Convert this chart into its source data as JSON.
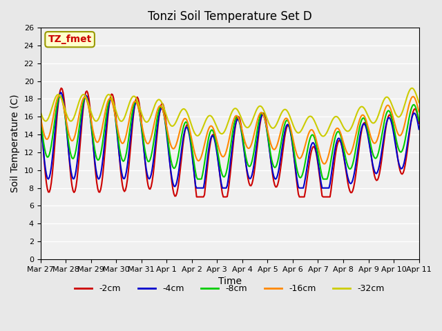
{
  "title": "Tonzi Soil Temperature Set D",
  "xlabel": "Time",
  "ylabel": "Soil Temperature (C)",
  "ylim": [
    0,
    26
  ],
  "yticks": [
    0,
    2,
    4,
    6,
    8,
    10,
    12,
    14,
    16,
    18,
    20,
    22,
    24,
    26
  ],
  "annotation_text": "TZ_fmet",
  "annotation_color": "#cc0000",
  "annotation_bg": "#ffffcc",
  "annotation_border": "#999900",
  "bg_color": "#e8e8e8",
  "plot_bg": "#f0f0f0",
  "series_colors": [
    "#cc0000",
    "#0000cc",
    "#00cc00",
    "#ff8800",
    "#cccc00"
  ],
  "series_labels": [
    "-2cm",
    "-4cm",
    "-8cm",
    "-16cm",
    "-32cm"
  ],
  "series_lw": 1.5,
  "xtick_labels": [
    "Mar 27",
    "Mar 28",
    "Mar 29",
    "Mar 30",
    "Mar 31",
    "Apr 1",
    "Apr 2",
    "Apr 3",
    "Apr 4",
    "Apr 5",
    "Apr 6",
    "Apr 7",
    "Apr 8",
    "Apr 9",
    "Apr 10",
    "Apr 11"
  ],
  "days_range": 15,
  "n_points": 360
}
